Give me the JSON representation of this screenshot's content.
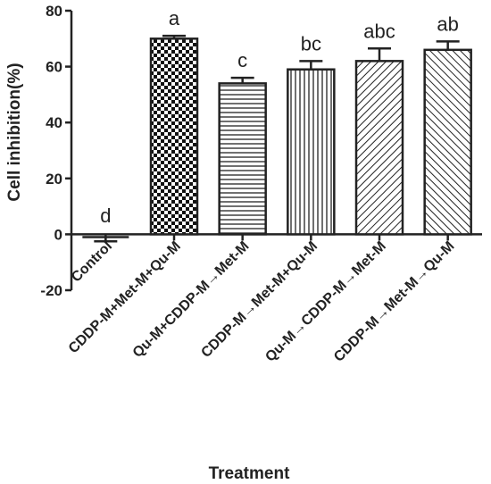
{
  "chart_data": {
    "type": "bar",
    "xlabel": "Treatment",
    "ylabel": "Cell inhibition(%)",
    "ylim": [
      -20,
      80
    ],
    "yticks": [
      -20,
      0,
      20,
      40,
      60,
      80
    ],
    "categories": [
      "Control",
      "CDDP-M+Met-M+Qu-M",
      "Qu-M+CDDP-M→Met-M",
      "CDDP-M→Met-M+Qu-M",
      "Qu-M→CDDP-M→Met-M",
      "CDDP-M→Met-M→Qu-M"
    ],
    "values": [
      -1,
      70,
      54,
      59,
      62,
      66
    ],
    "errors": [
      1.5,
      1,
      2,
      3,
      4.5,
      3
    ],
    "significance": [
      "d",
      "a",
      "c",
      "bc",
      "abc",
      "ab"
    ],
    "patterns": [
      "none",
      "checker",
      "horizontal",
      "vertical",
      "diagonal-right",
      "diagonal-left"
    ],
    "grid": false,
    "legend": "none"
  }
}
